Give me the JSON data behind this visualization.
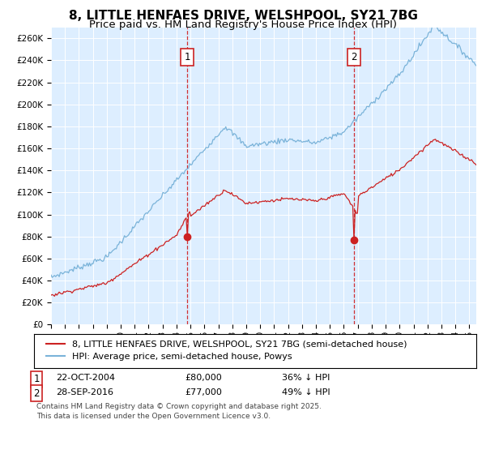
{
  "title": "8, LITTLE HENFAES DRIVE, WELSHPOOL, SY21 7BG",
  "subtitle": "Price paid vs. HM Land Registry's House Price Index (HPI)",
  "background_color": "#ffffff",
  "plot_bg_color": "#ddeeff",
  "hpi_color": "#7ab3d9",
  "price_color": "#cc2222",
  "ylim": [
    0,
    270000
  ],
  "ytick_step": 20000,
  "sale1_year": 2004.8,
  "sale1_price": 80000,
  "sale2_year": 2016.75,
  "sale2_price": 77000,
  "legend1": "8, LITTLE HENFAES DRIVE, WELSHPOOL, SY21 7BG (semi-detached house)",
  "legend2": "HPI: Average price, semi-detached house, Powys",
  "footnote": "Contains HM Land Registry data © Crown copyright and database right 2025.\nThis data is licensed under the Open Government Licence v3.0.",
  "title_fontsize": 11,
  "subtitle_fontsize": 9.5,
  "tick_fontsize": 7.5,
  "legend_fontsize": 8,
  "annotation_fontsize": 8,
  "footnote_fontsize": 6.5
}
